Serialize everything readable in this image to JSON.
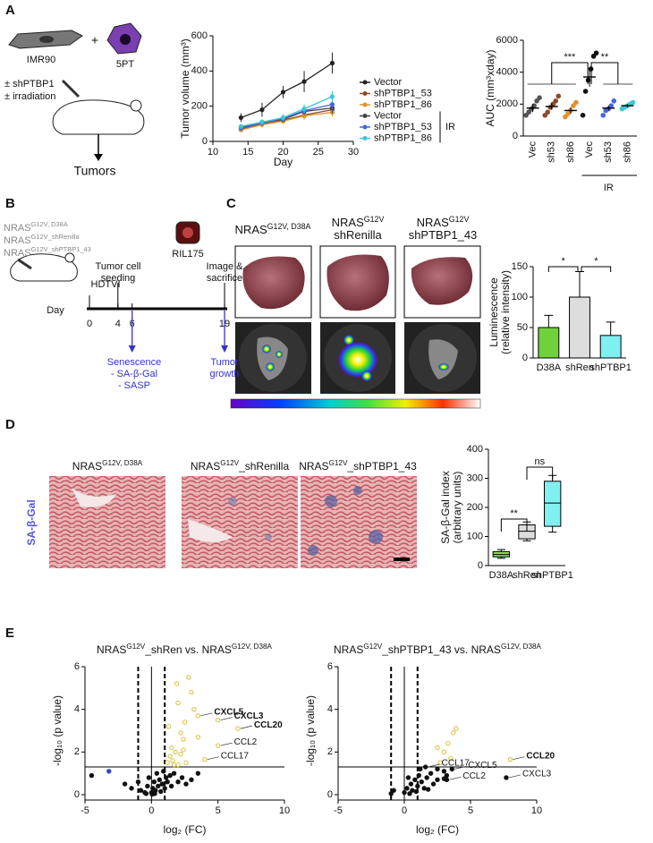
{
  "panel_labels": [
    "A",
    "B",
    "C",
    "D",
    "E"
  ],
  "panel_a": {
    "cell_line": "IMR90",
    "plus": "+",
    "organoid": "5PT",
    "treatments": [
      "± shPTBP1",
      "± irradiation"
    ],
    "outcome": "Tumors"
  },
  "panel_b": {
    "constructs": [
      [
        {
          "text": "NRAS"
        },
        {
          "sup": "G12V, D38A"
        }
      ],
      [
        {
          "text": "NRAS"
        },
        {
          "sup": "G12V_shRenilla"
        }
      ],
      [
        {
          "text": "NRAS"
        },
        {
          "sup": "G12V_shPTBP1_43"
        }
      ]
    ],
    "cell": "RIL175",
    "events": [
      [
        "HDTVI"
      ],
      [
        "Tumor cell",
        "seeding"
      ],
      [
        "Image &",
        "sacrifice"
      ]
    ],
    "day_label": "Day",
    "days": [
      0,
      4,
      6,
      19
    ],
    "outcomes": [
      [
        "Senescence",
        "- SA-β-Gal",
        "- SASP"
      ],
      [
        "Tumor",
        "growth"
      ]
    ]
  },
  "panel_c": {
    "headers": [
      [
        [
          {
            "text": "NRAS"
          },
          {
            "sup": "G12V, D38A"
          }
        ]
      ],
      [
        [
          {
            "text": "NRAS"
          },
          {
            "sup": "G12V"
          }
        ],
        [
          {
            "text": "shRenilla"
          }
        ]
      ],
      [
        [
          {
            "text": "NRAS"
          },
          {
            "sup": "G12V"
          }
        ],
        [
          {
            "text": "shPTBP1_43"
          }
        ]
      ]
    ]
  },
  "panel_d": {
    "headers": [
      [
        {
          "text": "NRAS"
        },
        {
          "sup": "G12V, D38A"
        }
      ],
      [
        {
          "text": "NRAS"
        },
        {
          "sup": "G12V"
        },
        {
          "text": "_shRenilla"
        }
      ],
      [
        {
          "text": "NRAS"
        },
        {
          "sup": "G12V"
        },
        {
          "text": "_shPTBP1_43"
        }
      ]
    ],
    "stain": "SA-β-Gal"
  },
  "chart_data": [
    {
      "type": "line",
      "xlabel": "Day",
      "ylabel": "Tumor volume (mm³)",
      "x": [
        14,
        17,
        20,
        23,
        27
      ],
      "xlim": [
        10,
        30
      ],
      "xticks": [
        10,
        15,
        20,
        25,
        30
      ],
      "ylim": [
        0,
        600
      ],
      "yticks": [
        0,
        200,
        400,
        600
      ],
      "ir_label": "IR",
      "series": [
        {
          "name": "Vector",
          "color": "#222222",
          "irradiated": false,
          "values": [
            135,
            180,
            280,
            340,
            445
          ],
          "errors": [
            25,
            40,
            35,
            60,
            60
          ]
        },
        {
          "name": "shPTBP1_53",
          "color": "#8b4a2b",
          "irradiated": false,
          "values": [
            70,
            100,
            120,
            150,
            180
          ],
          "errors": [
            10,
            15,
            15,
            20,
            25
          ]
        },
        {
          "name": "shPTBP1_86",
          "color": "#e0932a",
          "irradiated": false,
          "values": [
            65,
            95,
            115,
            145,
            165
          ],
          "errors": [
            10,
            15,
            15,
            20,
            25
          ]
        },
        {
          "name": "Vector",
          "color": "#444444",
          "irradiated": true,
          "values": [
            80,
            110,
            125,
            170,
            190
          ],
          "errors": [
            10,
            10,
            15,
            20,
            30
          ]
        },
        {
          "name": "shPTBP1_53",
          "color": "#4466dd",
          "irradiated": true,
          "values": [
            75,
            105,
            130,
            175,
            210
          ],
          "errors": [
            10,
            15,
            15,
            20,
            30
          ]
        },
        {
          "name": "shPTBP1_86",
          "color": "#3cc6d6",
          "irradiated": true,
          "values": [
            85,
            110,
            135,
            185,
            255
          ],
          "errors": [
            10,
            15,
            20,
            25,
            30
          ]
        }
      ]
    },
    {
      "type": "dot",
      "ylabel": "AUC (mm³xday)",
      "categories": [
        "Vec",
        "sh53",
        "sh86",
        "Vec",
        "sh53",
        "sh86"
      ],
      "irradiated": [
        false,
        false,
        false,
        true,
        true,
        true
      ],
      "ir_label": "IR",
      "colors": [
        "#555555",
        "#8b4a2b",
        "#e0932a",
        "#111111",
        "#4466dd",
        "#3cc6d6"
      ],
      "points": [
        [
          1300,
          1500,
          1700,
          1900,
          2200,
          2400
        ],
        [
          1300,
          1500,
          1800,
          2000,
          2200,
          2500
        ],
        [
          1200,
          1400,
          1600,
          1900,
          2100
        ],
        [
          1300,
          2800,
          3500,
          4200,
          5000,
          5200
        ],
        [
          1300,
          1600,
          1700,
          1900,
          2200
        ],
        [
          1700,
          1800,
          1900,
          2000,
          2100
        ]
      ],
      "values": [
        1750,
        1850,
        1600,
        3700,
        1750,
        1900
      ],
      "errors": [
        250,
        200,
        200,
        600,
        150,
        100
      ],
      "ylim": [
        0,
        6000
      ],
      "yticks": [
        0,
        2000,
        4000,
        6000
      ],
      "significance": [
        "***",
        "**"
      ]
    },
    {
      "type": "bar",
      "ylabel": [
        "Luminescence",
        "(relative intensity)"
      ],
      "categories": [
        "D38A",
        "shRen",
        "shPTBP1"
      ],
      "values": [
        50,
        100,
        37
      ],
      "errors": [
        20,
        42,
        22
      ],
      "colors": [
        "#6fd23a",
        "#dddddd",
        "#7ff0f0"
      ],
      "ylim": [
        0,
        150
      ],
      "yticks": [
        0,
        50,
        100,
        150
      ],
      "significance": [
        "*",
        "*"
      ]
    },
    {
      "type": "box",
      "ylabel": [
        "SA-β-Gal index",
        "(arbitrary units)"
      ],
      "categories": [
        "D38A",
        "shRen",
        "shPTBP1"
      ],
      "min": [
        25,
        85,
        115
      ],
      "q1": [
        30,
        92,
        135
      ],
      "median": [
        38,
        118,
        215
      ],
      "q3": [
        48,
        140,
        290
      ],
      "max": [
        55,
        150,
        310
      ],
      "colors": [
        "#8ee04a",
        "#dddddd",
        "#80f0f0"
      ],
      "ylim": [
        0,
        400
      ],
      "yticks": [
        0,
        100,
        200,
        300,
        400
      ],
      "significance": [
        "**",
        "ns"
      ]
    },
    {
      "type": "volcano",
      "title": [
        {
          "text": "NRAS"
        },
        {
          "sup": "G12V"
        },
        {
          "text": "_shRen vs. NRAS"
        },
        {
          "sup": "G12V, D38A"
        }
      ],
      "xlabel": "log₂ (FC)",
      "ylabel": "-log₁₀ (p value)",
      "xlim": [
        -5,
        10
      ],
      "xticks": [
        -5,
        0,
        5,
        10
      ],
      "ylim": [
        0,
        6
      ],
      "yticks": [
        0,
        2,
        4,
        6
      ],
      "thresholds_x": [
        -1,
        1
      ],
      "threshold_y": 1.3,
      "reference_x": 0,
      "series": [
        {
          "color": "#111111",
          "hollow": false,
          "x": [
            -4.5,
            -2,
            -1.5,
            -1,
            -0.8,
            -0.5,
            -0.3,
            -0.2,
            0,
            0.1,
            0.2,
            0.3,
            0.4,
            0.5,
            0.6,
            0.7,
            0.8,
            0.9,
            1.0,
            1.1,
            1.2,
            1.4,
            1.5,
            1.7,
            2.0,
            2.3,
            2.6,
            3.0,
            3.5,
            -0.4,
            0.05,
            0.25
          ],
          "y": [
            0.9,
            0.5,
            0.3,
            0.6,
            0.2,
            0.1,
            0.4,
            0.8,
            0.1,
            0.3,
            0.6,
            0.2,
            1.0,
            0.4,
            0.7,
            0.15,
            0.5,
            1.1,
            0.3,
            0.8,
            0.6,
            0.9,
            0.4,
            1.0,
            0.6,
            0.8,
            0.5,
            0.7,
            1.0,
            0.05,
            0.02,
            0.05
          ]
        },
        {
          "color": "#d8c23a",
          "hollow": true,
          "x": [
            1.2,
            1.4,
            1.5,
            1.6,
            1.8,
            2.0,
            2.2,
            2.4,
            2.6,
            1.3,
            2.5,
            2.8,
            3.0,
            3.2,
            2.0,
            1.9,
            2.2,
            2.4,
            1.7,
            3.5,
            3.5,
            5.0,
            6.5,
            5.0,
            4.0
          ],
          "y": [
            1.5,
            1.8,
            2.2,
            1.6,
            2.0,
            1.4,
            1.9,
            2.6,
            1.5,
            3.2,
            3.4,
            5.5,
            4.8,
            4.0,
            4.3,
            5.2,
            2.9,
            2.1,
            1.4,
            2.7,
            3.7,
            3.5,
            3.1,
            2.3,
            1.65
          ]
        },
        {
          "color": "#3344cc",
          "hollow": false,
          "x": [
            -3.2
          ],
          "y": [
            1.1
          ]
        }
      ],
      "annotations": [
        {
          "text": "CXCL5",
          "x": 3.5,
          "y": 3.7,
          "bold": true
        },
        {
          "text": "CXCL3",
          "x": 5.0,
          "y": 3.5,
          "bold": true
        },
        {
          "text": "CCL20",
          "x": 6.5,
          "y": 3.1,
          "bold": true
        },
        {
          "text": "CCL2",
          "x": 5.0,
          "y": 2.3,
          "bold": false
        },
        {
          "text": "CCL17",
          "x": 4.0,
          "y": 1.65,
          "bold": false
        }
      ]
    },
    {
      "type": "volcano",
      "title": [
        {
          "text": "NRAS"
        },
        {
          "sup": "G12V"
        },
        {
          "text": "_shPTBP1_43 vs. NRAS"
        },
        {
          "sup": "G12V, D38A"
        }
      ],
      "xlabel": "log₂ (FC)",
      "ylabel": "-log₁₀ (p value)",
      "xlim": [
        -5,
        10
      ],
      "xticks": [
        -5,
        0,
        5,
        10
      ],
      "ylim": [
        0,
        6
      ],
      "yticks": [
        0,
        2,
        4,
        6
      ],
      "thresholds_x": [
        -1,
        1
      ],
      "threshold_y": 1.3,
      "reference_x": 0,
      "series": [
        {
          "color": "#111111",
          "hollow": false,
          "x": [
            -1,
            -0.8,
            0,
            0.2,
            0.4,
            0.5,
            0.6,
            0.8,
            1.0,
            1.1,
            1.3,
            1.5,
            1.7,
            2.0,
            2.2,
            2.5,
            3.0,
            3.2,
            0.3,
            0.9,
            1.2,
            1.8,
            2.5,
            3.0,
            7.7,
            3.2,
            1.6,
            3.6
          ],
          "y": [
            0.05,
            0.2,
            0.1,
            0.3,
            0.05,
            0.5,
            0.2,
            0.7,
            0.4,
            0.9,
            0.6,
            0.3,
            0.8,
            1.0,
            0.5,
            0.7,
            1.1,
            0.9,
            0.8,
            0.15,
            1.2,
            0.25,
            1.2,
            0.75,
            0.8,
            0.7,
            1.3,
            1.2
          ]
        },
        {
          "color": "#d8c23a",
          "hollow": true,
          "x": [
            2.7,
            3.0,
            3.3,
            3.5,
            3.7,
            3.9,
            2.5,
            8.0
          ],
          "y": [
            1.5,
            2.0,
            2.4,
            1.7,
            2.9,
            3.1,
            2.2,
            1.65
          ]
        }
      ],
      "annotations": [
        {
          "text": "CCL20",
          "x": 8.0,
          "y": 1.65,
          "bold": true
        },
        {
          "text": "CCL17",
          "x": 1.6,
          "y": 1.3,
          "bold": false
        },
        {
          "text": "CXCL5",
          "x": 3.6,
          "y": 1.2,
          "bold": false
        },
        {
          "text": "CCL2",
          "x": 3.2,
          "y": 0.7,
          "bold": false
        },
        {
          "text": "CXCL3",
          "x": 7.7,
          "y": 0.8,
          "bold": false
        }
      ]
    }
  ]
}
